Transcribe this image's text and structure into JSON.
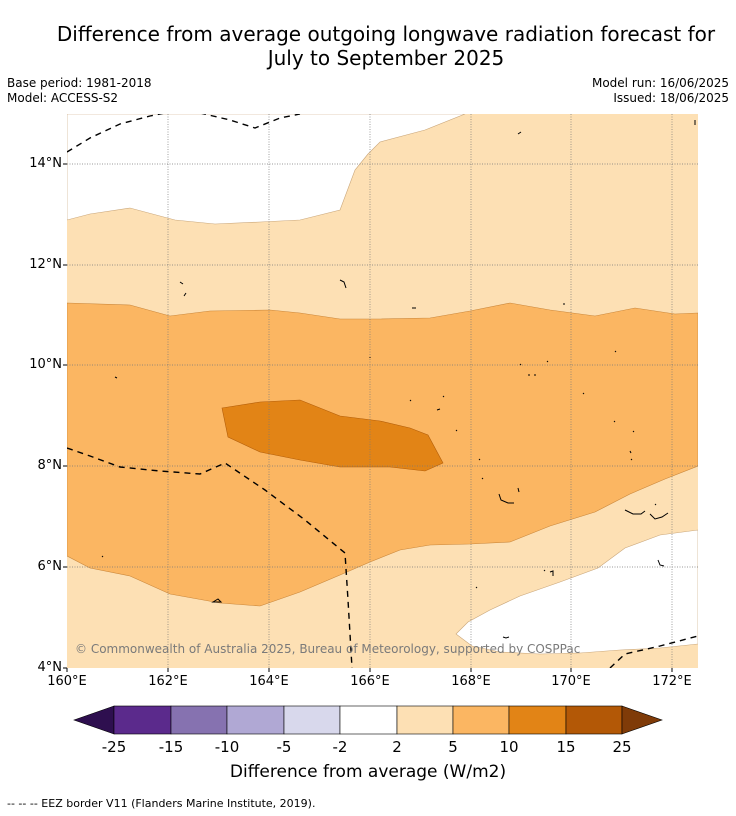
{
  "title_line1": "Difference from average outgoing longwave radiation forecast for",
  "title_line2": "July to September 2025",
  "base_period": "Base period: 1981-2018",
  "model": "Model: ACCESS-S2",
  "model_run": "Model run: 16/06/2025",
  "issued": "Issued: 18/06/2025",
  "map": {
    "lat_ticks": [
      "14°N",
      "12°N",
      "10°N",
      "8°N",
      "6°N",
      "4°N"
    ],
    "lon_ticks": [
      "160°E",
      "162°E",
      "164°E",
      "166°E",
      "168°E",
      "170°E",
      "172°E"
    ],
    "copyright": "© Commonwealth of Australia 2025, Bureau of Meteorology, supported by COSPPac"
  },
  "colorbar": {
    "ticks": [
      "-25",
      "-15",
      "-10",
      "-5",
      "-2",
      "2",
      "5",
      "10",
      "15",
      "25"
    ],
    "colors": [
      "#2e0f4f",
      "#5b2a8c",
      "#8672b0",
      "#b0a8d4",
      "#d8d8ec",
      "#ffffff",
      "#fde0b4",
      "#fbb662",
      "#e28416",
      "#b35806",
      "#7f3b08"
    ],
    "label": "Difference from average (W/m2)"
  },
  "footnote": "--  --  -- EEZ border V11 (Flanders Marine Institute, 2019)."
}
